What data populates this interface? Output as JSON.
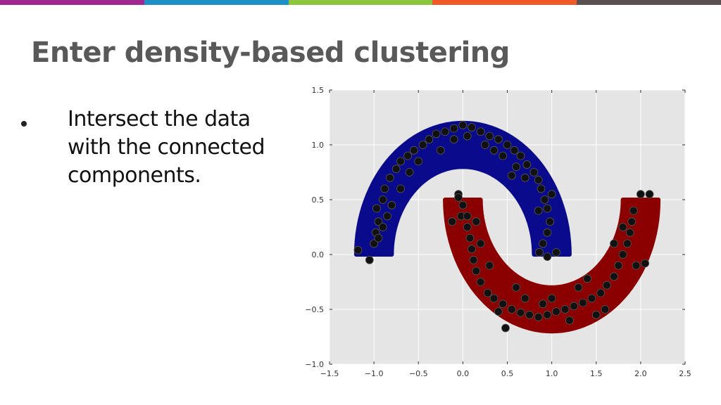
{
  "colors": {
    "topbar": [
      "#a0288e",
      "#1e90c8",
      "#8cc63f",
      "#f05a28",
      "#5a5050"
    ],
    "title": "#595959",
    "plot_bg": "#e5e5e5",
    "grid": "#ffffff",
    "cluster_blue": "#0a0a8c",
    "cluster_red": "#8b0000",
    "points": "#111111"
  },
  "slide": {
    "title": "Enter density-based clustering",
    "bullets": [
      "Intersect the data with the connected components."
    ]
  },
  "chart_data": {
    "type": "scatter",
    "title": "",
    "xlabel": "",
    "ylabel": "",
    "xlim": [
      -1.5,
      2.5
    ],
    "ylim": [
      -1.0,
      1.5
    ],
    "grid": true,
    "xticks": [
      -1.5,
      -1.0,
      -0.5,
      0.0,
      0.5,
      1.0,
      1.5,
      2.0,
      2.5
    ],
    "yticks": [
      -1.0,
      -0.5,
      0.0,
      0.5,
      1.0,
      1.5
    ],
    "xtick_labels": [
      "−1.5",
      "−1.0",
      "−0.5",
      "0.0",
      "0.5",
      "1.0",
      "1.5",
      "2.0",
      "2.5"
    ],
    "ytick_labels": [
      "−1.0",
      "−0.5",
      "0.0",
      "0.5",
      "1.0",
      "1.5"
    ],
    "regions": [
      {
        "cluster": 0,
        "color": "#0a0a8c",
        "shape": "upper-moon",
        "center": [
          0.0,
          0.0
        ],
        "radius": 1.0,
        "half_width": 0.2,
        "angle_range_deg": [
          0,
          180
        ]
      },
      {
        "cluster": 1,
        "color": "#8b0000",
        "shape": "lower-moon",
        "center": [
          1.0,
          0.5
        ],
        "radius": 1.0,
        "half_width": 0.2,
        "angle_range_deg": [
          180,
          360
        ]
      }
    ],
    "points": [
      [
        -1.18,
        0.04
      ],
      [
        -1.05,
        -0.05
      ],
      [
        -1.0,
        0.1
      ],
      [
        -0.98,
        0.2
      ],
      [
        -0.95,
        0.3
      ],
      [
        -0.97,
        0.42
      ],
      [
        -0.9,
        0.5
      ],
      [
        -0.88,
        0.6
      ],
      [
        -0.82,
        0.7
      ],
      [
        -0.75,
        0.78
      ],
      [
        -0.7,
        0.85
      ],
      [
        -0.62,
        0.9
      ],
      [
        -0.55,
        0.95
      ],
      [
        -0.45,
        1.0
      ],
      [
        -0.38,
        1.05
      ],
      [
        -0.3,
        1.1
      ],
      [
        -0.2,
        1.12
      ],
      [
        -0.1,
        1.15
      ],
      [
        0.0,
        1.18
      ],
      [
        0.1,
        1.16
      ],
      [
        0.2,
        1.12
      ],
      [
        0.3,
        1.08
      ],
      [
        0.4,
        1.05
      ],
      [
        0.5,
        1.0
      ],
      [
        0.58,
        0.95
      ],
      [
        0.65,
        0.9
      ],
      [
        0.72,
        0.82
      ],
      [
        0.8,
        0.75
      ],
      [
        0.85,
        0.68
      ],
      [
        0.88,
        0.6
      ],
      [
        0.92,
        0.5
      ],
      [
        0.95,
        0.42
      ],
      [
        0.98,
        0.3
      ],
      [
        0.95,
        0.2
      ],
      [
        0.9,
        0.1
      ],
      [
        0.86,
        0.02
      ],
      [
        0.95,
        -0.02
      ],
      [
        1.05,
        0.02
      ],
      [
        1.0,
        0.55
      ],
      [
        0.85,
        0.4
      ],
      [
        -0.85,
        0.35
      ],
      [
        -0.8,
        0.45
      ],
      [
        -0.9,
        0.25
      ],
      [
        -0.95,
        0.15
      ],
      [
        -0.6,
        0.75
      ],
      [
        -0.5,
        0.85
      ],
      [
        0.7,
        0.7
      ],
      [
        0.6,
        0.8
      ],
      [
        0.45,
        0.9
      ],
      [
        0.35,
        0.95
      ],
      [
        -0.25,
        0.95
      ],
      [
        -0.1,
        1.05
      ],
      [
        0.05,
        1.08
      ],
      [
        0.25,
        1.0
      ],
      [
        0.55,
        0.72
      ],
      [
        -0.7,
        0.6
      ],
      [
        -0.05,
        0.55
      ],
      [
        0.0,
        0.45
      ],
      [
        -0.02,
        0.35
      ],
      [
        0.05,
        0.25
      ],
      [
        0.08,
        0.15
      ],
      [
        0.1,
        0.05
      ],
      [
        0.12,
        -0.05
      ],
      [
        0.15,
        -0.15
      ],
      [
        0.2,
        -0.25
      ],
      [
        0.28,
        -0.35
      ],
      [
        0.35,
        -0.4
      ],
      [
        0.45,
        -0.45
      ],
      [
        0.55,
        -0.5
      ],
      [
        0.65,
        -0.53
      ],
      [
        0.75,
        -0.55
      ],
      [
        0.85,
        -0.57
      ],
      [
        0.95,
        -0.55
      ],
      [
        1.05,
        -0.52
      ],
      [
        1.15,
        -0.5
      ],
      [
        1.25,
        -0.47
      ],
      [
        1.35,
        -0.44
      ],
      [
        1.45,
        -0.4
      ],
      [
        1.55,
        -0.35
      ],
      [
        1.62,
        -0.28
      ],
      [
        1.7,
        -0.2
      ],
      [
        1.75,
        -0.1
      ],
      [
        1.8,
        0.0
      ],
      [
        1.85,
        0.1
      ],
      [
        1.88,
        0.2
      ],
      [
        1.9,
        0.3
      ],
      [
        1.92,
        0.4
      ],
      [
        2.0,
        0.55
      ],
      [
        2.1,
        0.55
      ],
      [
        2.05,
        -0.08
      ],
      [
        1.95,
        -0.1
      ],
      [
        1.2,
        -0.6
      ],
      [
        0.48,
        -0.67
      ],
      [
        0.05,
        0.35
      ],
      [
        0.2,
        0.1
      ],
      [
        0.3,
        -0.1
      ],
      [
        0.6,
        -0.3
      ],
      [
        0.9,
        -0.45
      ],
      [
        1.3,
        -0.3
      ],
      [
        1.6,
        -0.5
      ],
      [
        1.8,
        0.25
      ],
      [
        1.7,
        0.1
      ],
      [
        0.15,
        0.3
      ],
      [
        -0.12,
        0.3
      ],
      [
        -0.05,
        0.52
      ],
      [
        0.4,
        -0.52
      ],
      [
        0.7,
        -0.4
      ],
      [
        1.0,
        -0.4
      ],
      [
        1.4,
        -0.22
      ],
      [
        1.5,
        -0.55
      ]
    ]
  }
}
